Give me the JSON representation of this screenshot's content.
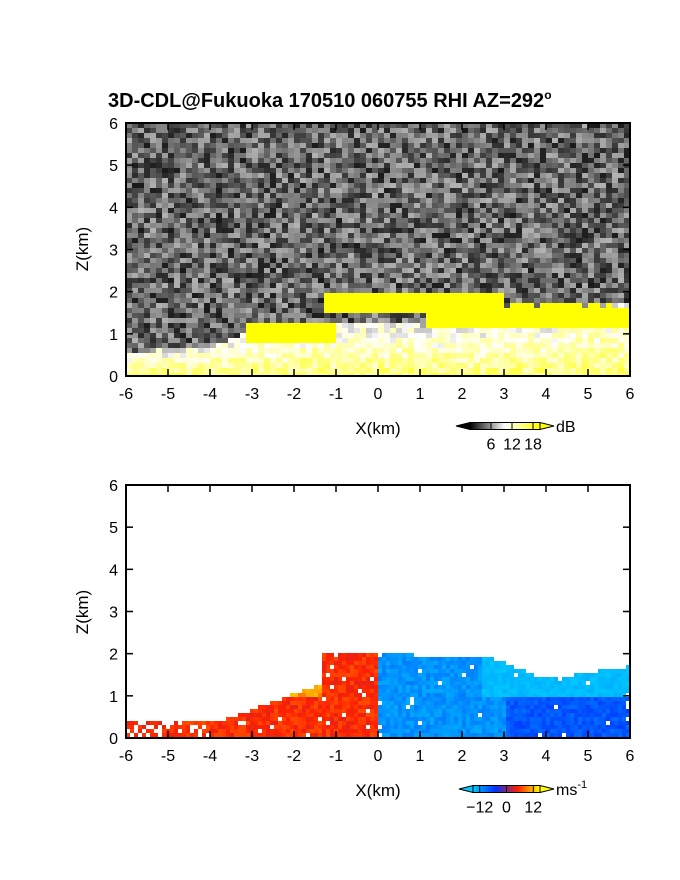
{
  "chart_data": [
    {
      "type": "heatmap",
      "title": "3D-CDL@Fukuoka 170510 060755 RHI AZ=292",
      "title_superscript": "o",
      "xlabel": "X(km)",
      "ylabel": "Z(km)",
      "xlim": [
        -6,
        6
      ],
      "ylim": [
        0,
        6
      ],
      "x_ticks": [
        "-6",
        "-5",
        "-4",
        "-3",
        "-2",
        "-1",
        "0",
        "1",
        "2",
        "3",
        "4",
        "5",
        "6"
      ],
      "y_ticks": [
        "0",
        "1",
        "2",
        "3",
        "4",
        "5",
        "6"
      ],
      "colorbar": {
        "unit": "dB",
        "ticks": [
          "6",
          "12",
          "18"
        ],
        "range": [
          0,
          20
        ],
        "colors": [
          "#000000",
          "#ffffff",
          "#ffff00"
        ]
      },
      "features": {
        "background_noise": "gray speckle, about 2-5 dB",
        "aerosol_layer_top_km": [
          [
            -6,
            0.55
          ],
          [
            -4,
            0.7
          ],
          [
            -3,
            1.05
          ],
          [
            -1,
            1.3
          ],
          [
            0,
            1.25
          ],
          [
            2,
            1.15
          ],
          [
            4,
            1.35
          ],
          [
            5,
            1.65
          ],
          [
            6,
            1.7
          ]
        ],
        "yellow_cloud_regions_km": [
          {
            "x_from": -1.3,
            "x_to": 3.0,
            "z_from": 1.5,
            "z_to": 2.0
          },
          {
            "x_from": -3.2,
            "x_to": -1.0,
            "z_from": 0.8,
            "z_to": 1.3
          },
          {
            "x_from": 1.2,
            "x_to": 6.0,
            "z_from": 1.15,
            "z_to": 1.7
          }
        ]
      }
    },
    {
      "type": "heatmap",
      "xlabel": "X(km)",
      "ylabel": "Z(km)",
      "xlim": [
        -6,
        6
      ],
      "ylim": [
        0,
        6
      ],
      "x_ticks": [
        "-6",
        "-5",
        "-4",
        "-3",
        "-2",
        "-1",
        "0",
        "1",
        "2",
        "3",
        "4",
        "5",
        "6"
      ],
      "y_ticks": [
        "0",
        "1",
        "2",
        "3",
        "4",
        "5",
        "6"
      ],
      "colorbar": {
        "unit": "ms",
        "unit_superscript": "-1",
        "ticks": [
          "−12",
          "0",
          "12"
        ],
        "range": [
          -15,
          15
        ],
        "colors": [
          "#00c8ff",
          "#0030ff",
          "#ff2000",
          "#ffff00"
        ]
      },
      "features": {
        "negative_velocity_region": {
          "x_from": 0,
          "x_to": 6,
          "z_top_km": [
            [
              0,
              2.0
            ],
            [
              2.7,
              1.9
            ],
            [
              4,
              1.4
            ],
            [
              6,
              1.7
            ]
          ],
          "approx_value_ms": -10
        },
        "positive_velocity_region": {
          "x_from": -6,
          "x_to": 0,
          "z_top_km": [
            [
              -6,
              0.4
            ],
            [
              -4,
              0.45
            ],
            [
              -3.5,
              1.0
            ],
            [
              -1.3,
              1.3
            ],
            [
              -1.3,
              2.0
            ],
            [
              0,
              2.0
            ]
          ],
          "approx_value_ms": 6
        }
      }
    }
  ]
}
